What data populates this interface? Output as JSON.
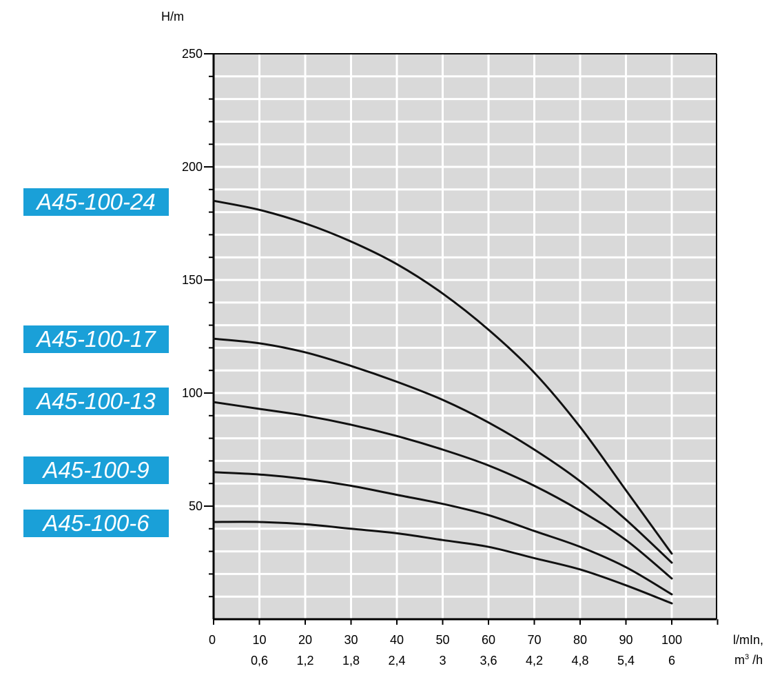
{
  "chart_data": {
    "type": "line",
    "y_unit_label": "H/m",
    "x_unit_label_1": "l/mIn,",
    "x_unit_label_2_base": "m",
    "x_unit_label_2_sup": "3",
    "x_unit_label_2_end": " /h",
    "x_ticks": [
      "0",
      "10",
      "20",
      "30",
      "40",
      "50",
      "60",
      "70",
      "80",
      "90",
      "100"
    ],
    "x_ticks_secondary": [
      "0,6",
      "1,2",
      "1,8",
      "2,4",
      "3",
      "3,6",
      "4,2",
      "4,8",
      "5,4",
      "6"
    ],
    "y_ticks": [
      "50",
      "100",
      "150",
      "200",
      "250"
    ],
    "xlim": [
      0,
      110
    ],
    "ylim": [
      0,
      250
    ],
    "grid": true,
    "plot_background": "#d9d9d9",
    "grid_color": "#ffffff",
    "line_color": "#111111",
    "label_color": "#1aa0d8",
    "series": [
      {
        "name": "A45-100-24",
        "x": [
          0,
          10,
          20,
          30,
          40,
          50,
          60,
          70,
          80,
          90,
          100
        ],
        "y": [
          185,
          181,
          175,
          167,
          157,
          144,
          128,
          109,
          85,
          57,
          29
        ]
      },
      {
        "name": "A45-100-17",
        "x": [
          0,
          10,
          20,
          30,
          40,
          50,
          60,
          70,
          80,
          90,
          100
        ],
        "y": [
          124,
          122,
          118,
          112,
          105,
          97,
          87,
          75,
          61,
          44,
          25
        ]
      },
      {
        "name": "A45-100-13",
        "x": [
          0,
          10,
          20,
          30,
          40,
          50,
          60,
          70,
          80,
          90,
          100
        ],
        "y": [
          96,
          93,
          90,
          86,
          81,
          75,
          68,
          59,
          48,
          35,
          18
        ]
      },
      {
        "name": "A45-100-9",
        "x": [
          0,
          10,
          20,
          30,
          40,
          50,
          60,
          70,
          80,
          90,
          100
        ],
        "y": [
          65,
          64,
          62,
          59,
          55,
          51,
          46,
          39,
          32,
          23,
          11
        ]
      },
      {
        "name": "A45-100-6",
        "x": [
          0,
          10,
          20,
          30,
          40,
          50,
          60,
          70,
          80,
          90,
          100
        ],
        "y": [
          43,
          43,
          42,
          40,
          38,
          35,
          32,
          27,
          22,
          15,
          7
        ]
      }
    ]
  }
}
